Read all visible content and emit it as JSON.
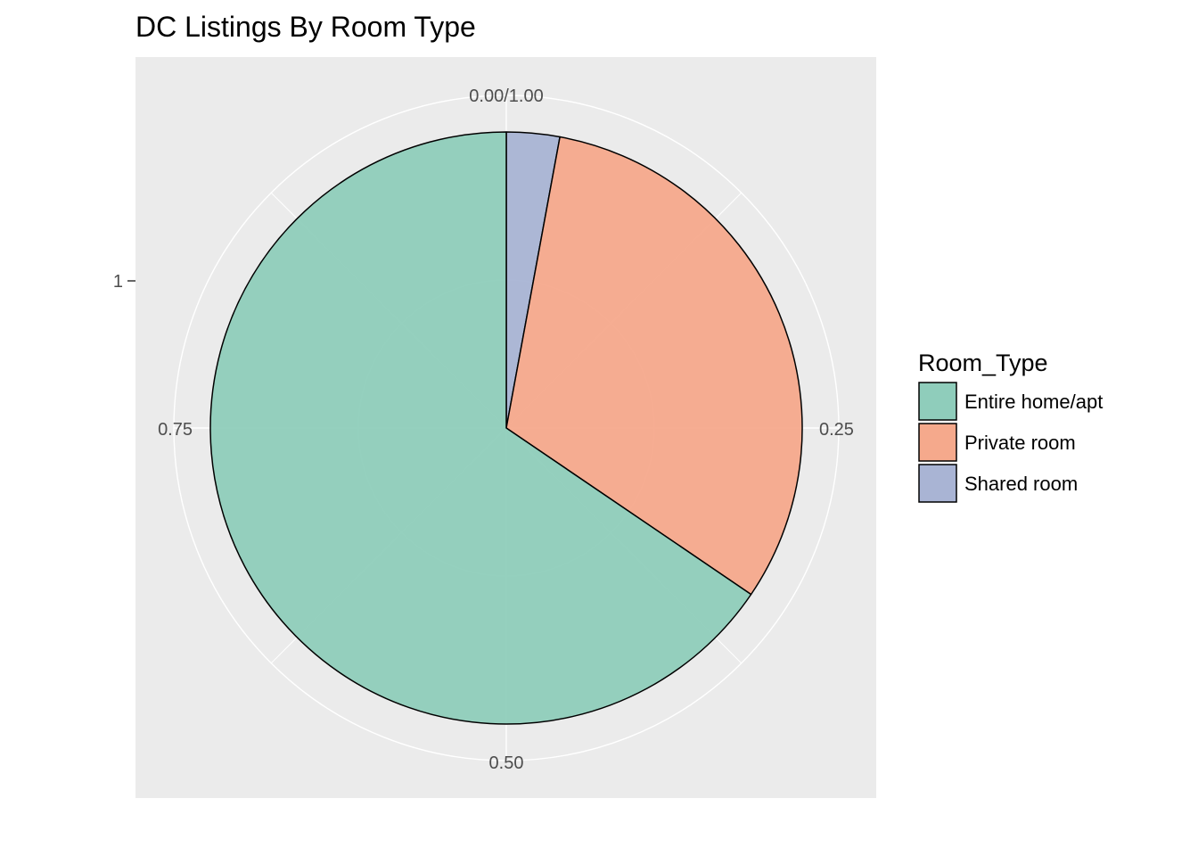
{
  "chart_data": {
    "type": "pie",
    "title": "DC Listings By Room Type",
    "radial_axis_label": "1",
    "angle_ticks": [
      "0.00/1.00",
      "0.25",
      "0.50",
      "0.75"
    ],
    "legend_title": "Room_Type",
    "legend_position": "right",
    "categories": [
      "Entire home/apt",
      "Private room",
      "Shared room"
    ],
    "values": [
      0.655,
      0.316,
      0.029
    ],
    "colors": [
      "#8fcdbb",
      "#f5a98c",
      "#a9b4d4"
    ],
    "grid": true,
    "panel_background": "#ebebeb",
    "grid_color": "#ffffff"
  }
}
